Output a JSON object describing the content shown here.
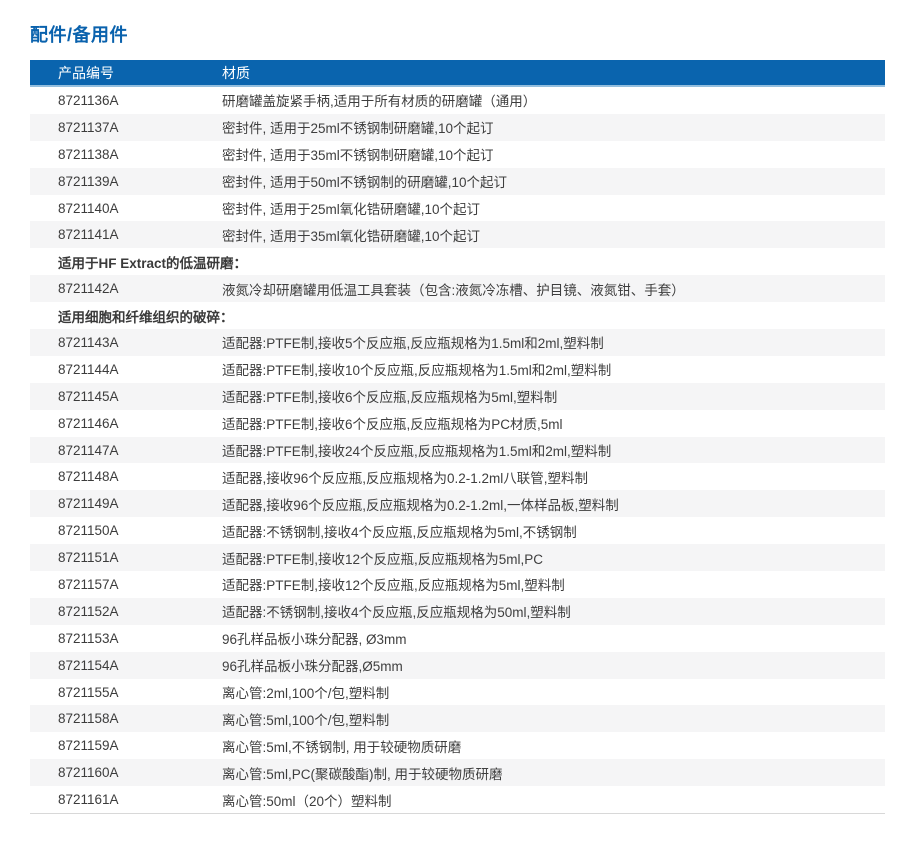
{
  "page": {
    "title": "配件/备用件"
  },
  "colors": {
    "accent_blue": "#0a64ae",
    "header_underline_blue": "#93bede",
    "stripe_gray": "#f5f5f6",
    "text_gray": "#3e3e3e",
    "bottom_border_gray": "#d8d8d8"
  },
  "table": {
    "headers": {
      "product_code": "产品编号",
      "material": "材质"
    },
    "rows": [
      {
        "type": "item",
        "code": "8721136A",
        "material": "研磨罐盖旋紧手柄,适用于所有材质的研磨罐（通用）"
      },
      {
        "type": "item",
        "code": "8721137A",
        "material": "密封件, 适用于25ml不锈钢制研磨罐,10个起订"
      },
      {
        "type": "item",
        "code": "8721138A",
        "material": "密封件, 适用于35ml不锈钢制研磨罐,10个起订"
      },
      {
        "type": "item",
        "code": "8721139A",
        "material": "密封件, 适用于50ml不锈钢制的研磨罐,10个起订"
      },
      {
        "type": "item",
        "code": "8721140A",
        "material": "密封件, 适用于25ml氧化锆研磨罐,10个起订"
      },
      {
        "type": "item",
        "code": "8721141A",
        "material": "密封件, 适用于35ml氧化锆研磨罐,10个起订"
      },
      {
        "type": "section",
        "label": "适用于HF Extract的低温研磨："
      },
      {
        "type": "item",
        "code": "8721142A",
        "material": "液氮冷却研磨罐用低温工具套装（包含:液氮冷冻槽、护目镜、液氮钳、手套）"
      },
      {
        "type": "section",
        "label": "适用细胞和纤维组织的破碎："
      },
      {
        "type": "item",
        "code": "8721143A",
        "material": "适配器:PTFE制,接收5个反应瓶,反应瓶规格为1.5ml和2ml,塑料制"
      },
      {
        "type": "item",
        "code": "8721144A",
        "material": "适配器:PTFE制,接收10个反应瓶,反应瓶规格为1.5ml和2ml,塑料制"
      },
      {
        "type": "item",
        "code": "8721145A",
        "material": "适配器:PTFE制,接收6个反应瓶,反应瓶规格为5ml,塑料制"
      },
      {
        "type": "item",
        "code": "8721146A",
        "material": "适配器:PTFE制,接收6个反应瓶,反应瓶规格为PC材质,5ml"
      },
      {
        "type": "item",
        "code": "8721147A",
        "material": "适配器:PTFE制,接收24个反应瓶,反应瓶规格为1.5ml和2ml,塑料制"
      },
      {
        "type": "item",
        "code": "8721148A",
        "material": "适配器,接收96个反应瓶,反应瓶规格为0.2-1.2ml八联管,塑料制"
      },
      {
        "type": "item",
        "code": "8721149A",
        "material": "适配器,接收96个反应瓶,反应瓶规格为0.2-1.2ml,一体样品板,塑料制"
      },
      {
        "type": "item",
        "code": "8721150A",
        "material": "适配器:不锈钢制,接收4个反应瓶,反应瓶规格为5ml,不锈钢制"
      },
      {
        "type": "item",
        "code": "8721151A",
        "material": "适配器:PTFE制,接收12个反应瓶,反应瓶规格为5ml,PC"
      },
      {
        "type": "item",
        "code": "8721157A",
        "material": "适配器:PTFE制,接收12个反应瓶,反应瓶规格为5ml,塑料制"
      },
      {
        "type": "item",
        "code": "8721152A",
        "material": "适配器:不锈钢制,接收4个反应瓶,反应瓶规格为50ml,塑料制"
      },
      {
        "type": "item",
        "code": "8721153A",
        "material": "96孔样品板小珠分配器, Ø3mm"
      },
      {
        "type": "item",
        "code": "8721154A",
        "material": "96孔样品板小珠分配器,Ø5mm"
      },
      {
        "type": "item",
        "code": "8721155A",
        "material": "离心管:2ml,100个/包,塑料制"
      },
      {
        "type": "item",
        "code": "8721158A",
        "material": "离心管:5ml,100个/包,塑料制"
      },
      {
        "type": "item",
        "code": "8721159A",
        "material": "离心管:5ml,不锈钢制, 用于较硬物质研磨"
      },
      {
        "type": "item",
        "code": "8721160A",
        "material": "离心管:5ml,PC(聚碳酸酯)制, 用于较硬物质研磨"
      },
      {
        "type": "item",
        "code": "8721161A",
        "material": "离心管:50ml（20个）塑料制"
      }
    ]
  }
}
